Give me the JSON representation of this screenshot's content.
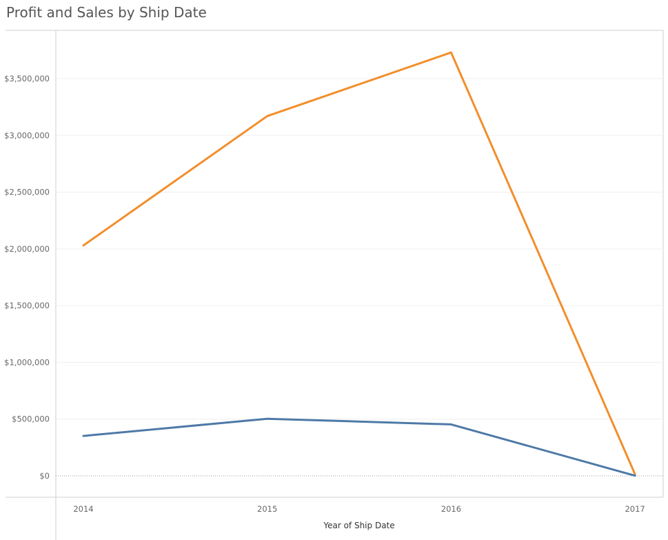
{
  "chart_data": {
    "type": "line",
    "title": "Profit and Sales by Ship Date",
    "xlabel": "Year of Ship Date",
    "ylabel": "",
    "categories": [
      "2014",
      "2015",
      "2016",
      "2017"
    ],
    "ylim": [
      0,
      3800000
    ],
    "yticks": [
      0,
      500000,
      1000000,
      1500000,
      2000000,
      2500000,
      3000000,
      3500000
    ],
    "ytick_labels": [
      "$0",
      "$500,000",
      "$1,000,000",
      "$1,500,000",
      "$2,000,000",
      "$2,500,000",
      "$3,000,000",
      "$3,500,000"
    ],
    "grid": true,
    "series": [
      {
        "values": [
          2030000,
          3170000,
          3730000,
          15000
        ],
        "color": "#F28E2B"
      },
      {
        "values": [
          352000,
          503000,
          453000,
          2000
        ],
        "color": "#4E79A7"
      }
    ]
  }
}
